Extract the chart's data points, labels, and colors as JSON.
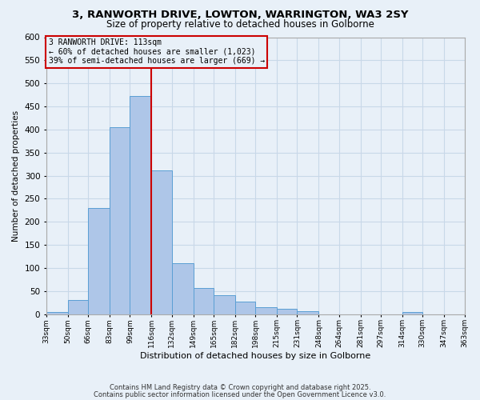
{
  "title1": "3, RANWORTH DRIVE, LOWTON, WARRINGTON, WA3 2SY",
  "title2": "Size of property relative to detached houses in Golborne",
  "xlabel": "Distribution of detached houses by size in Golborne",
  "ylabel": "Number of detached properties",
  "bar_color": "#aec6e8",
  "bar_edge_color": "#5a9fd4",
  "grid_color": "#c8d8e8",
  "bg_color": "#e8f0f8",
  "vline_color": "#cc0000",
  "annotation_line1": "3 RANWORTH DRIVE: 113sqm",
  "annotation_line2": "← 60% of detached houses are smaller (1,023)",
  "annotation_line3": "39% of semi-detached houses are larger (669) →",
  "bins": [
    33,
    50,
    66,
    83,
    99,
    116,
    132,
    149,
    165,
    182,
    198,
    215,
    231,
    248,
    264,
    281,
    297,
    314,
    330,
    347,
    363
  ],
  "values": [
    5,
    30,
    230,
    405,
    472,
    312,
    110,
    57,
    40,
    27,
    15,
    12,
    6,
    0,
    0,
    0,
    0,
    5,
    0,
    0
  ],
  "ylim": [
    0,
    600
  ],
  "yticks": [
    0,
    50,
    100,
    150,
    200,
    250,
    300,
    350,
    400,
    450,
    500,
    550,
    600
  ],
  "figsize": [
    6.0,
    5.0
  ],
  "dpi": 100,
  "footnote1": "Contains HM Land Registry data © Crown copyright and database right 2025.",
  "footnote2": "Contains public sector information licensed under the Open Government Licence v3.0."
}
